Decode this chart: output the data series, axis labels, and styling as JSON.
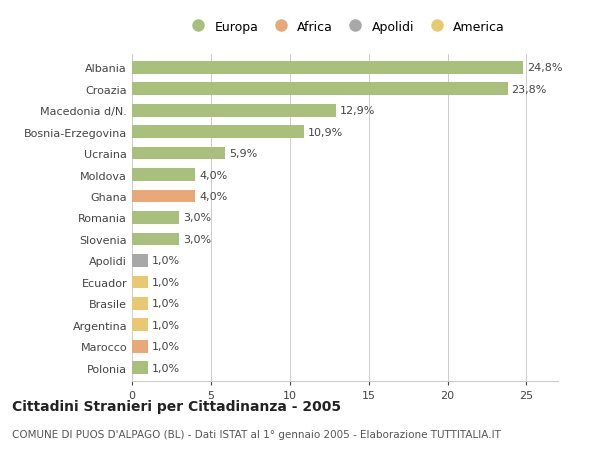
{
  "categories": [
    "Albania",
    "Croazia",
    "Macedonia d/N.",
    "Bosnia-Erzegovina",
    "Ucraina",
    "Moldova",
    "Ghana",
    "Romania",
    "Slovenia",
    "Apolidi",
    "Ecuador",
    "Brasile",
    "Argentina",
    "Marocco",
    "Polonia"
  ],
  "values": [
    24.8,
    23.8,
    12.9,
    10.9,
    5.9,
    4.0,
    4.0,
    3.0,
    3.0,
    1.0,
    1.0,
    1.0,
    1.0,
    1.0,
    1.0
  ],
  "labels": [
    "24,8%",
    "23,8%",
    "12,9%",
    "10,9%",
    "5,9%",
    "4,0%",
    "4,0%",
    "3,0%",
    "3,0%",
    "1,0%",
    "1,0%",
    "1,0%",
    "1,0%",
    "1,0%",
    "1,0%"
  ],
  "colors": [
    "#a8c07c",
    "#a8c07c",
    "#a8c07c",
    "#a8c07c",
    "#a8c07c",
    "#a8c07c",
    "#e8a878",
    "#a8c07c",
    "#a8c07c",
    "#a8a8a8",
    "#e8c870",
    "#e8c870",
    "#e8c870",
    "#e8a878",
    "#a8c07c"
  ],
  "legend_labels": [
    "Europa",
    "Africa",
    "Apolidi",
    "America"
  ],
  "legend_colors": [
    "#a8c07c",
    "#e8a878",
    "#a8a8a8",
    "#e8c870"
  ],
  "title": "Cittadini Stranieri per Cittadinanza - 2005",
  "subtitle": "COMUNE DI PUOS D'ALPAGO (BL) - Dati ISTAT al 1° gennaio 2005 - Elaborazione TUTTITALIA.IT",
  "xlim": [
    0,
    27
  ],
  "bg_color": "#ffffff",
  "plot_bg_color": "#ffffff",
  "grid_color": "#cccccc",
  "bar_height": 0.6,
  "title_fontsize": 10,
  "subtitle_fontsize": 7.5,
  "label_fontsize": 8,
  "tick_fontsize": 8
}
